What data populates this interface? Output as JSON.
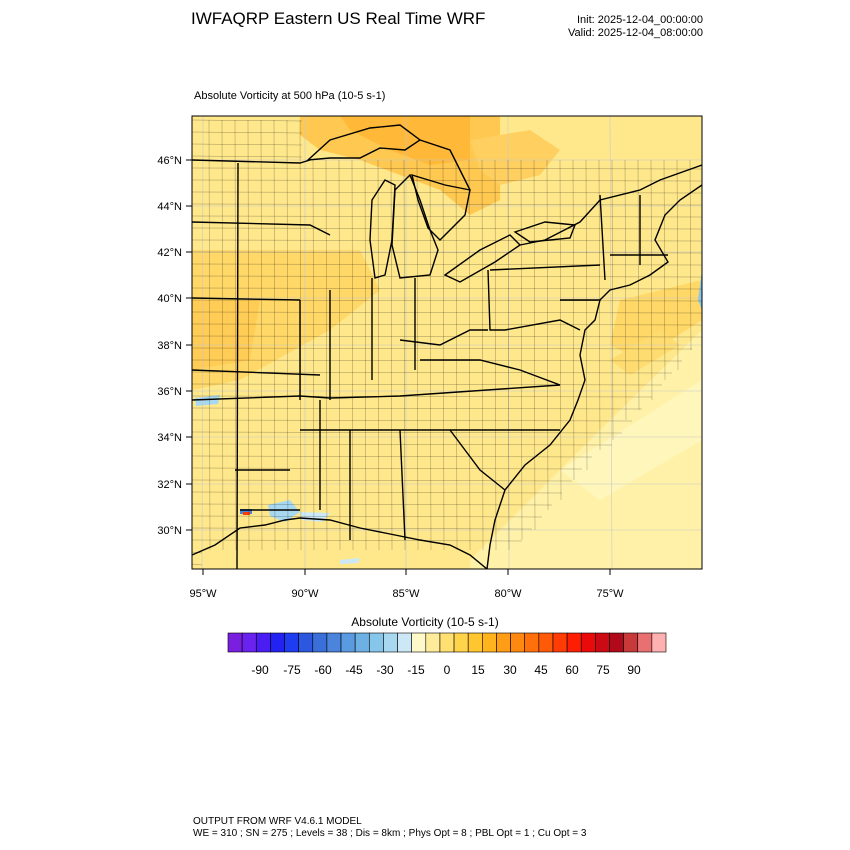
{
  "header": {
    "title": "IWFAQRP Eastern US Real Time WRF",
    "init": "Init: 2025-12-04_00:00:00",
    "valid": "Valid: 2025-12-04_08:00:00"
  },
  "field": {
    "title": "Absolute Vorticity at 500 hPa   (10-5 s-1)"
  },
  "map": {
    "lat_labels": [
      "46°N",
      "44°N",
      "42°N",
      "40°N",
      "38°N",
      "36°N",
      "34°N",
      "32°N",
      "30°N"
    ],
    "lon_labels": [
      "95°W",
      "90°W",
      "85°W",
      "80°W",
      "75°W"
    ]
  },
  "colorbar": {
    "title": "Absolute Vorticity  (10-5 s-1)",
    "labels": [
      "-90",
      "-75",
      "-60",
      "-45",
      "-30",
      "-15",
      "0",
      "15",
      "30",
      "45",
      "60",
      "75",
      "90"
    ],
    "colors": [
      "#7a1ee0",
      "#6a22ef",
      "#4a1ef2",
      "#2222f2",
      "#1e3cf0",
      "#2c58e0",
      "#3a6ed8",
      "#4a84dc",
      "#5a9ae0",
      "#6cb0e4",
      "#86c6ea",
      "#a8d8ef",
      "#cce8f6",
      "#fff8c8",
      "#ffec9a",
      "#ffe070",
      "#ffd44a",
      "#ffc630",
      "#ffb41e",
      "#ff9e16",
      "#ff8810",
      "#ff700c",
      "#ff5a08",
      "#ff3c06",
      "#ff1e04",
      "#ea0a0a",
      "#cc0a14",
      "#b00a1a",
      "#c83a3a",
      "#e87070",
      "#ffb0b0"
    ]
  },
  "footer": {
    "line1": "OUTPUT FROM WRF V4.6.1 MODEL",
    "line2": "WE = 310 ; SN = 275 ; Levels = 38 ; Dis = 8km ; Phys Opt = 8 ; PBL Opt = 1 ; Cu Opt = 3"
  }
}
